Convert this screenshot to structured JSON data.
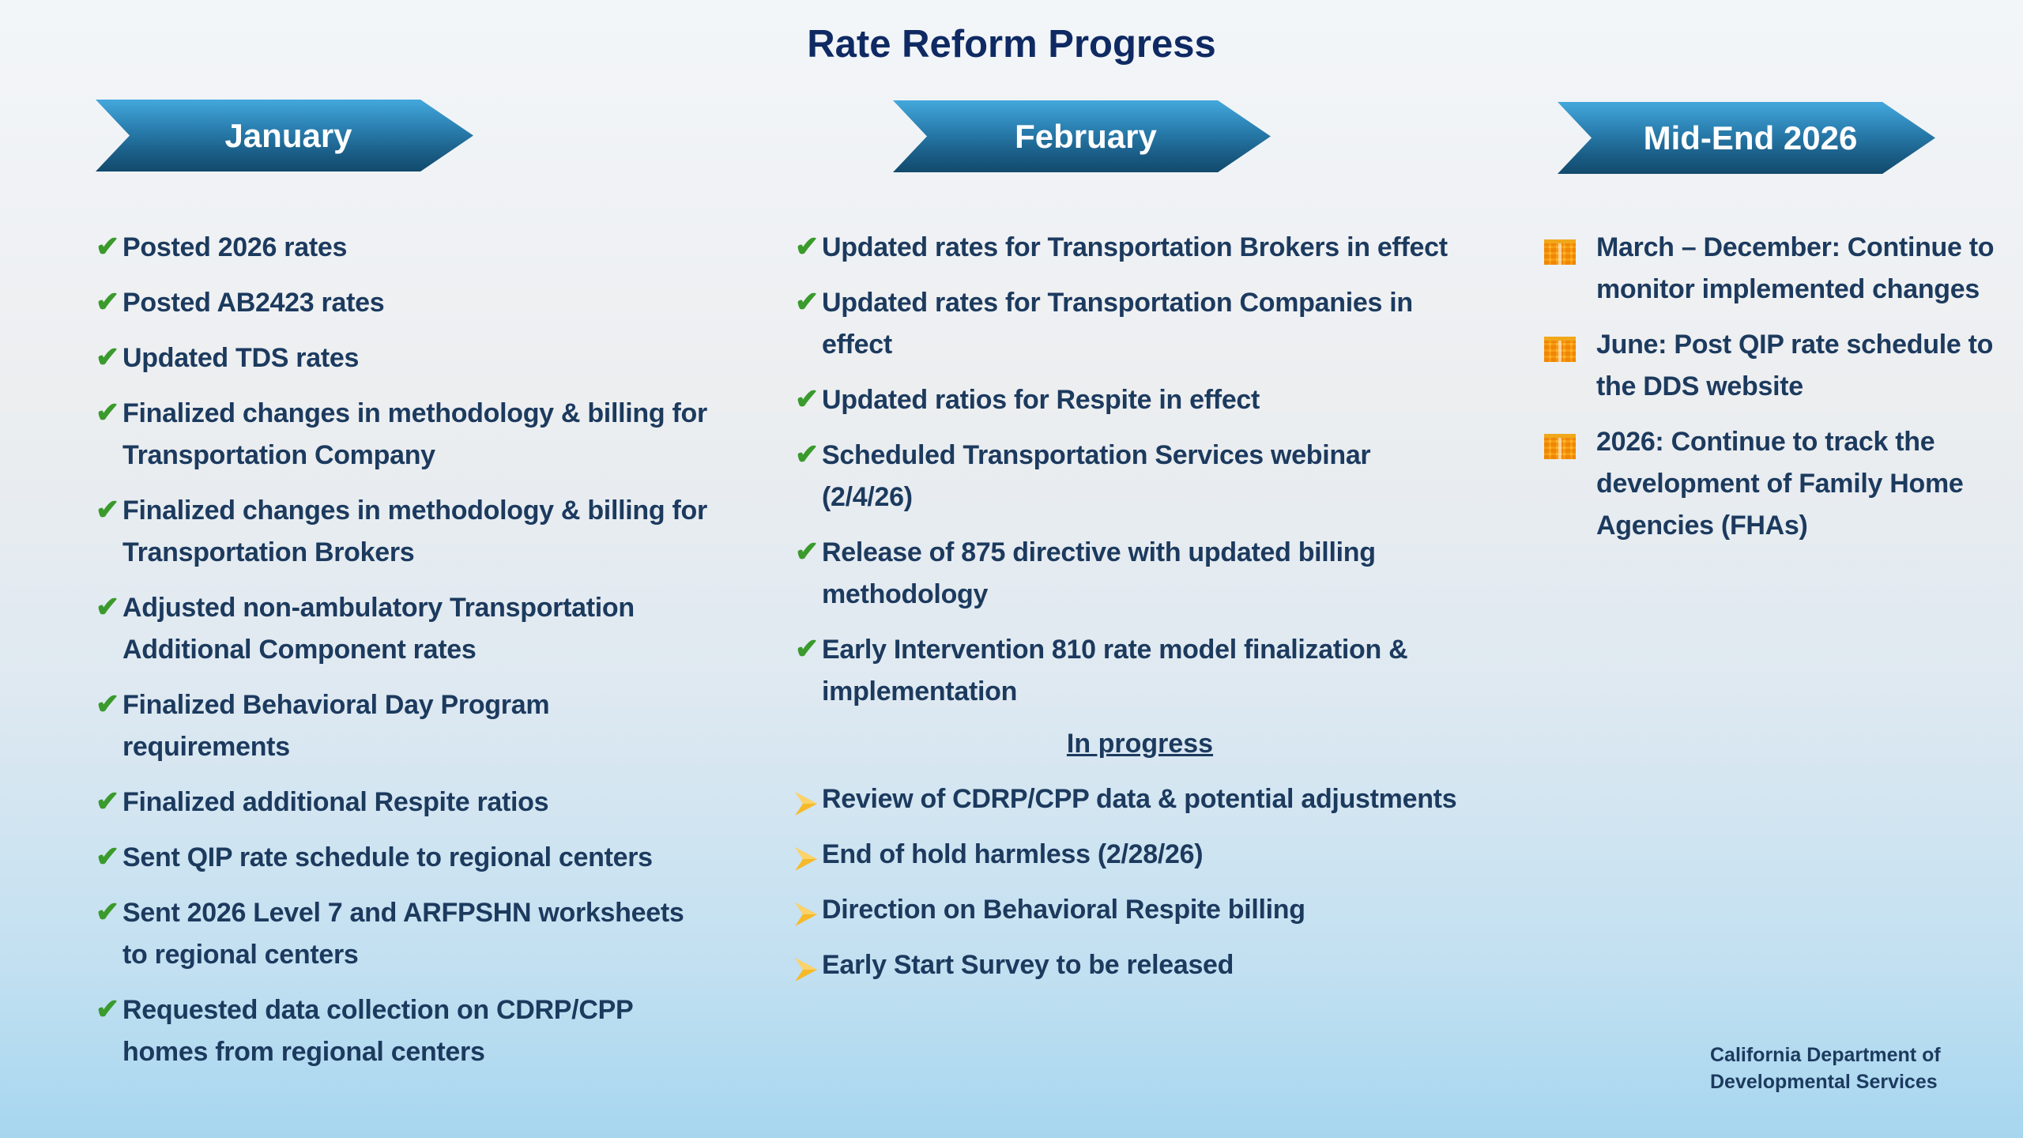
{
  "title": "Rate Reform Progress",
  "columns": [
    {
      "header": "January",
      "items": [
        "Posted 2026 rates",
        "Posted AB2423 rates",
        "Updated TDS rates",
        "Finalized changes in methodology & billing for Transportation Company",
        "Finalized changes in methodology & billing for Transportation Brokers",
        "Adjusted non-ambulatory Transportation Additional Component rates",
        "Finalized Behavioral Day Program requirements",
        "Finalized additional Respite ratios",
        "Sent QIP rate schedule to regional centers",
        "Sent 2026 Level 7 and ARFPSHN worksheets to regional centers",
        "Requested data collection on CDRP/CPP homes from regional centers"
      ]
    },
    {
      "header": "February",
      "items": [
        "Updated rates for Transportation Brokers in effect",
        "Updated rates for Transportation Companies in effect",
        "Updated ratios for Respite in effect",
        "Scheduled Transportation Services webinar (2/4/26)",
        "Release of 875 directive with updated billing methodology",
        "Early Intervention 810 rate model finalization & implementation"
      ],
      "in_progress_label": "In progress",
      "in_progress_items": [
        "Review of CDRP/CPP data & potential adjustments",
        "End of hold harmless (2/28/26)",
        "Direction on Behavioral Respite billing",
        " Early Start Survey to be released"
      ]
    },
    {
      "header": "Mid-End 2026",
      "items": [
        "March – December: Continue to monitor implemented changes",
        "June: Post QIP rate schedule to the DDS website",
        "2026: Continue to track the development of Family Home Agencies (FHAs)"
      ]
    }
  ],
  "footer": {
    "line1": "California Department of",
    "line2": "Developmental Services"
  },
  "icons": {
    "done": "checkmark-icon",
    "in_progress": "arrowhead-icon",
    "planned": "calendar-icon"
  },
  "colors": {
    "title": "#0f2a63",
    "text": "#1c3a5e",
    "check": "#3a9a2c",
    "arrow": "#f7b928",
    "calendar": "#f7b928",
    "chevron": "#1a5d86"
  }
}
